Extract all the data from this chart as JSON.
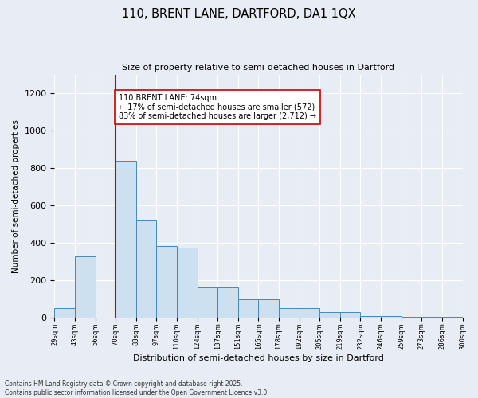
{
  "title1": "110, BRENT LANE, DARTFORD, DA1 1QX",
  "title2": "Size of property relative to semi-detached houses in Dartford",
  "xlabel": "Distribution of semi-detached houses by size in Dartford",
  "ylabel": "Number of semi-detached properties",
  "bins": [
    "29sqm",
    "43sqm",
    "56sqm",
    "70sqm",
    "83sqm",
    "97sqm",
    "110sqm",
    "124sqm",
    "137sqm",
    "151sqm",
    "165sqm",
    "178sqm",
    "192sqm",
    "205sqm",
    "219sqm",
    "232sqm",
    "246sqm",
    "259sqm",
    "273sqm",
    "286sqm",
    "300sqm"
  ],
  "bar_heights": [
    50,
    325,
    0,
    840,
    520,
    380,
    375,
    160,
    160,
    95,
    95,
    50,
    50,
    28,
    28,
    8,
    8,
    3,
    3,
    1
  ],
  "bar_color": "#cce0f0",
  "bar_edge_color": "#4488bb",
  "vline_position": 3,
  "vline_color": "#cc0000",
  "annotation_text": "110 BRENT LANE: 74sqm\n← 17% of semi-detached houses are smaller (572)\n83% of semi-detached houses are larger (2,712) →",
  "annotation_box_color": "#ffffff",
  "annotation_box_edge": "#cc0000",
  "ylim": [
    0,
    1300
  ],
  "yticks": [
    0,
    200,
    400,
    600,
    800,
    1000,
    1200
  ],
  "footer": "Contains HM Land Registry data © Crown copyright and database right 2025.\nContains public sector information licensed under the Open Government Licence v3.0.",
  "bg_color": "#e8edf5",
  "plot_bg_color": "#e8edf5",
  "figsize": [
    6.0,
    5.0
  ],
  "dpi": 100
}
